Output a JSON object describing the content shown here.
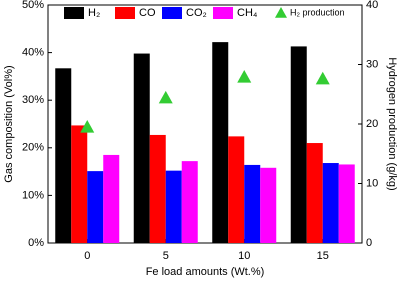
{
  "chart_data": {
    "type": "bar",
    "xlabel": "Fe load amounts (Wt.%)",
    "ylabel": "Gas composition (Vol%)",
    "y2label": "Hydrogen production (g/kg)",
    "categories": [
      "0",
      "5",
      "10",
      "15"
    ],
    "series": [
      {
        "name": "H₂",
        "color": "#000000",
        "values": [
          36.7,
          39.8,
          42.2,
          41.3
        ]
      },
      {
        "name": "CO",
        "color": "#ff0000",
        "values": [
          24.7,
          22.7,
          22.4,
          21.0
        ]
      },
      {
        "name": "CO₂",
        "color": "#0000ff",
        "values": [
          15.1,
          15.2,
          16.4,
          16.8
        ]
      },
      {
        "name": "CH₄",
        "color": "#ff00ff",
        "values": [
          18.5,
          17.2,
          15.8,
          16.5
        ]
      },
      {
        "name": "H₂ production",
        "color": "#33cc33",
        "axis": "y2",
        "marker": "triangle",
        "values": [
          19.5,
          24.4,
          27.9,
          27.6
        ]
      }
    ],
    "ylim": [
      0,
      50
    ],
    "yticks": [
      {
        "value": 0,
        "label": "0%"
      },
      {
        "value": 10,
        "label": "10%"
      },
      {
        "value": 20,
        "label": "20%"
      },
      {
        "value": 30,
        "label": "30%"
      },
      {
        "value": 40,
        "label": "40%"
      },
      {
        "value": 50,
        "label": "50%"
      }
    ],
    "y2lim": [
      0,
      40
    ],
    "y2ticks": [
      0,
      10,
      20,
      30,
      40
    ]
  }
}
